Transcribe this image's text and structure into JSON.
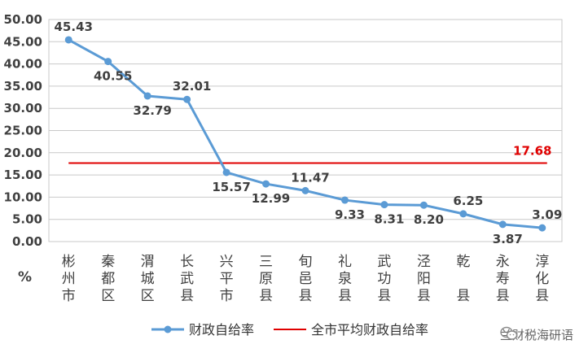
{
  "chart_data": {
    "type": "line",
    "categories": [
      "彬州市",
      "秦都区",
      "渭城区",
      "长武县",
      "兴平市",
      "三原县",
      "旬邑县",
      "礼泉县",
      "武功县",
      "泾阳县",
      "乾县",
      "永寿县",
      "淳化县"
    ],
    "series": [
      {
        "name": "财政自给率",
        "values": [
          45.43,
          40.55,
          32.79,
          32.01,
          15.57,
          12.99,
          11.47,
          9.33,
          8.31,
          8.2,
          6.25,
          3.87,
          3.09
        ],
        "labels": [
          "45.43",
          "40.55",
          "32.79",
          "32.01",
          "15.57",
          "12.99",
          "11.47",
          "9.33",
          "8.31",
          "8.20",
          "6.25",
          "3.87",
          "3.09"
        ],
        "color": "#5b9bd5"
      },
      {
        "name": "全市平均财政自给率",
        "value": 17.68,
        "label": "17.68",
        "color": "#e00000"
      }
    ],
    "yticks": [
      "0.00",
      "5.00",
      "10.00",
      "15.00",
      "20.00",
      "25.00",
      "30.00",
      "35.00",
      "40.00",
      "45.00",
      "50.00"
    ],
    "ylim": [
      0,
      50
    ],
    "ylabel": "%",
    "grid": true,
    "legend_position": "bottom"
  },
  "watermark": {
    "icon": "wechat-icon",
    "text": "兰财税海研语"
  }
}
